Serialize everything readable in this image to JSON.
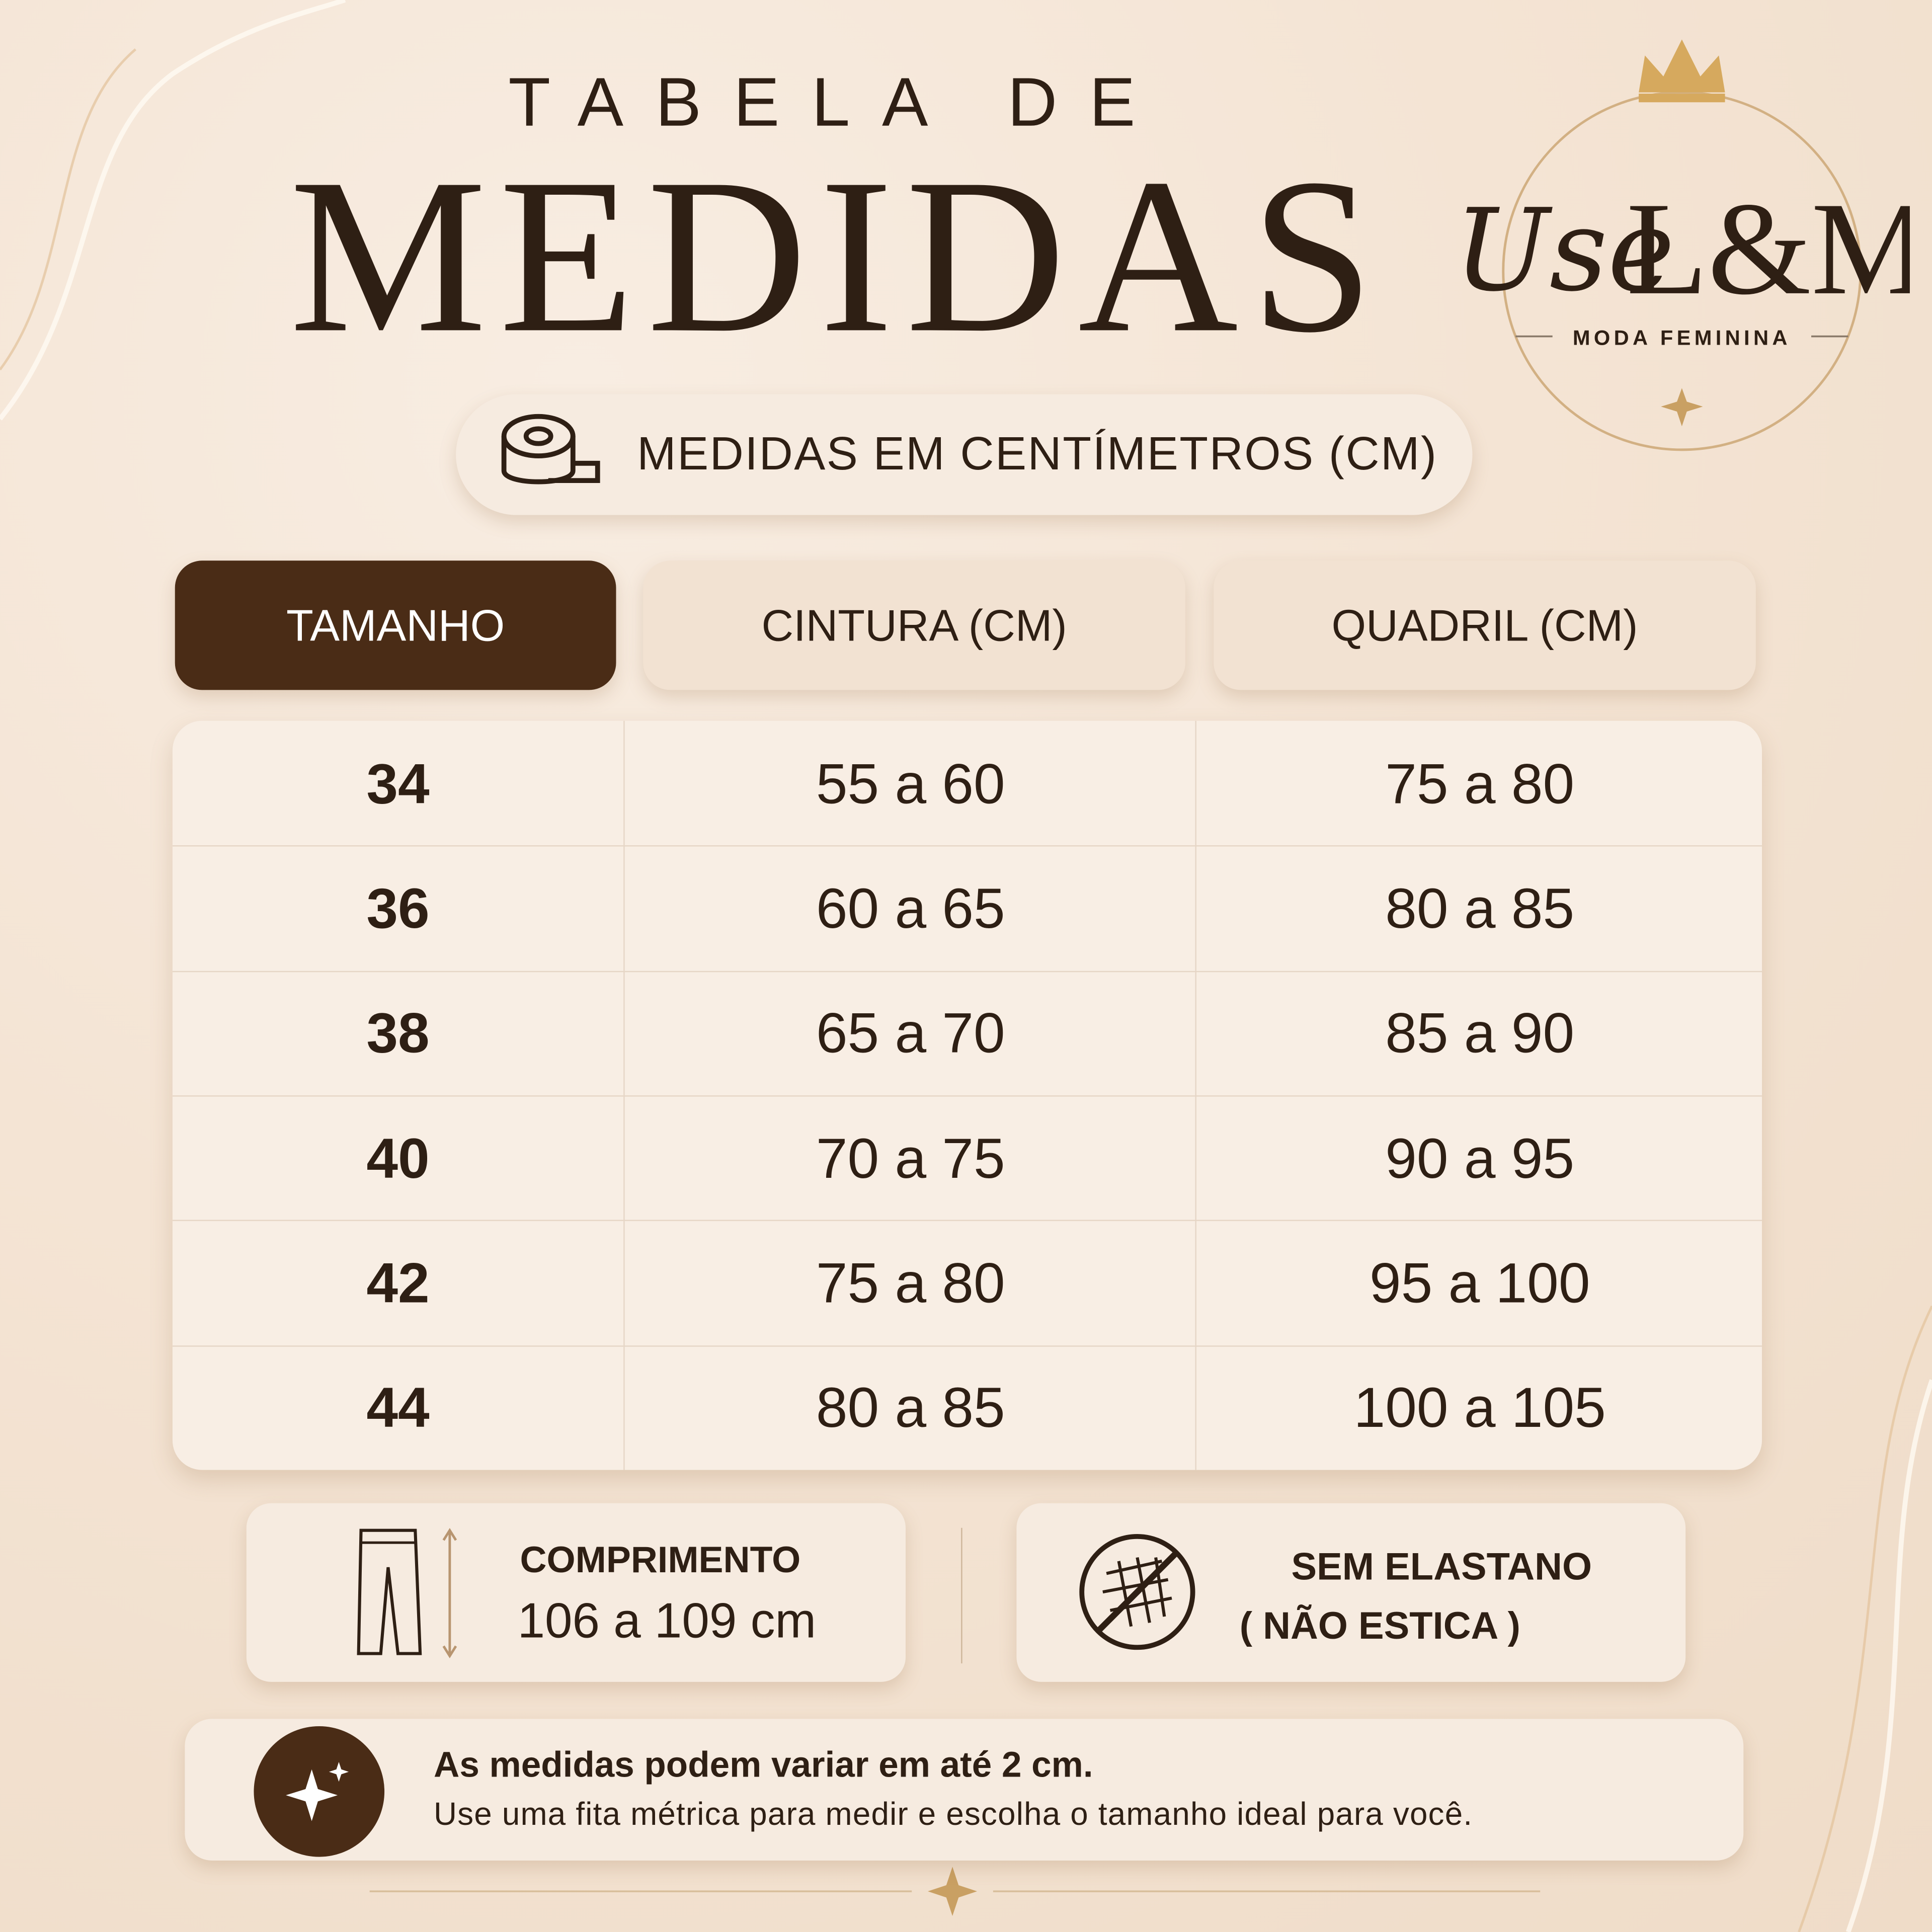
{
  "header": {
    "title_line1": "TABELA DE",
    "title_line2": "MEDIDAS"
  },
  "logo": {
    "script": "Use",
    "brand": "L&M",
    "tagline": "MODA FEMININA"
  },
  "unit_badge": "MEDIDAS EM CENTÍMETROS (CM)",
  "table": {
    "headers": [
      "TAMANHO",
      "CINTURA (CM)",
      "QUADRIL (CM)"
    ],
    "rows": [
      [
        "34",
        "55 a 60",
        "75 a 80"
      ],
      [
        "36",
        "60 a 65",
        "80 a 85"
      ],
      [
        "38",
        "65 a 70",
        "85 a 90"
      ],
      [
        "40",
        "70 a 75",
        "90 a 95"
      ],
      [
        "42",
        "75 a 80",
        "95 a 100"
      ],
      [
        "44",
        "80 a 85",
        "100 a 105"
      ]
    ]
  },
  "features": [
    {
      "title": "COMPRIMENTO",
      "text": "106 a 109 cm"
    },
    {
      "title": "SEM ELASTANO",
      "text": "( NÃO ESTICA )"
    }
  ],
  "note": {
    "bold": "As medidas podem variar em até 2 cm.",
    "text": "Use uma fita métrica para medir e escolha o tamanho ideal para você."
  }
}
